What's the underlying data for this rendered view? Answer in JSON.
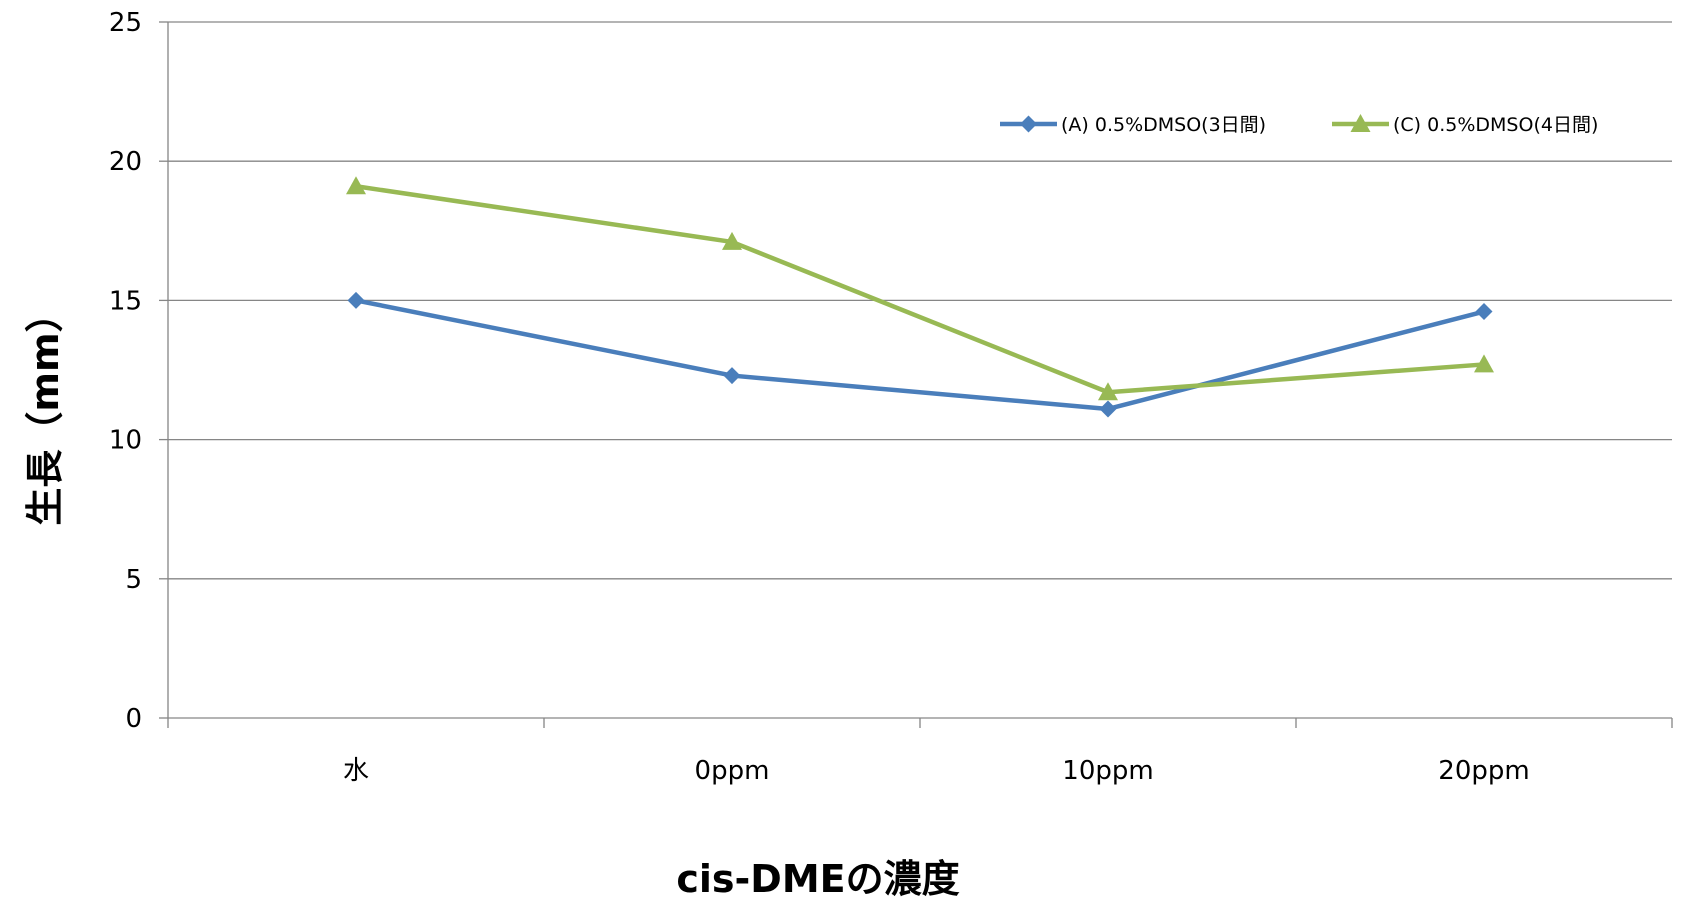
{
  "chart_data": {
    "type": "line",
    "title": "",
    "xlabel": "cis-DMEの濃度",
    "ylabel": "生長（mm）",
    "categories": [
      "水",
      "0ppm",
      "10ppm",
      "20ppm"
    ],
    "ylim": [
      0,
      25
    ],
    "yticks": [
      0,
      5,
      10,
      15,
      20,
      25
    ],
    "grid": true,
    "legend_position": "top-right",
    "series": [
      {
        "name": "(A) 0.5%DMSO(3日間)",
        "values": [
          15.0,
          12.3,
          11.1,
          14.6
        ],
        "color": "#4a7ebb",
        "marker": "diamond"
      },
      {
        "name": "(C) 0.5%DMSO(4日間)",
        "values": [
          19.1,
          17.1,
          11.7,
          12.7
        ],
        "color": "#98b954",
        "marker": "triangle"
      }
    ]
  }
}
